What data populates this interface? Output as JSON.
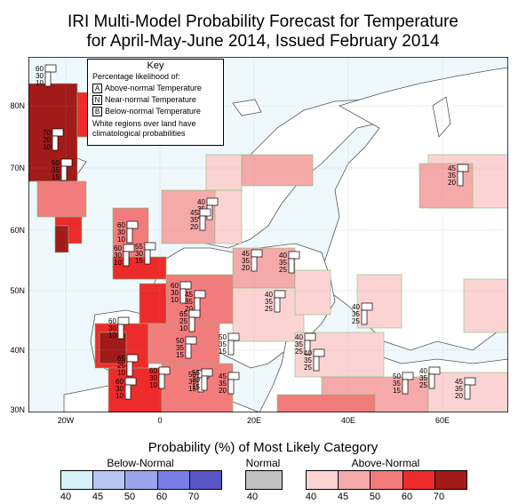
{
  "title_line1": "IRI Multi-Model Probability Forecast for Temperature",
  "title_line2": "for April-May-June 2014, Issued February 2014",
  "key": {
    "title": "Key",
    "subtitle": "Percentage likelihood of:",
    "items": [
      {
        "letter": "A",
        "label": "Above-normal Temperature"
      },
      {
        "letter": "N",
        "label": "Near-normal Temperature"
      },
      {
        "letter": "B",
        "label": "Below-normal Temperature"
      }
    ],
    "note_line1": "White regions over land have",
    "note_line2": "climatological probabilities"
  },
  "lat_labels": [
    "80N",
    "70N",
    "60N",
    "50N",
    "40N",
    "30N"
  ],
  "lon_labels": [
    "20W",
    "0",
    "20E",
    "40E",
    "60E"
  ],
  "legend": {
    "title": "Probability (%) of Most Likely Category",
    "below_label": "Below-Normal",
    "normal_label": "Normal",
    "above_label": "Above-Normal",
    "below_ticks": [
      "40",
      "45",
      "50",
      "60",
      "70"
    ],
    "normal_ticks": [
      "40"
    ],
    "above_ticks": [
      "40",
      "45",
      "50",
      "60",
      "70"
    ],
    "below_colors": [
      "#d6f2f8",
      "#b8c6f4",
      "#9aa5ee",
      "#7b7de6",
      "#5a56c6"
    ],
    "normal_colors": [
      "#c2c2c2"
    ],
    "above_colors": [
      "#fcd3d3",
      "#f5a9a9",
      "#f27c7c",
      "#ee2b2b",
      "#a31a1a"
    ]
  },
  "colors": {
    "ocean": "#eef8fd",
    "land_clim": "#ffffff",
    "coast": "#555555"
  },
  "forecast_boxes": [
    {
      "a": "60",
      "n": "30",
      "b": "10"
    },
    {
      "a": "70",
      "n": "20",
      "b": "10"
    },
    {
      "a": "70",
      "n": "20",
      "b": "10"
    },
    {
      "a": "50",
      "n": "35",
      "b": "15"
    },
    {
      "a": "45",
      "n": "35",
      "b": "20"
    },
    {
      "a": "40",
      "n": "35",
      "b": "25"
    },
    {
      "a": "45",
      "n": "35",
      "b": "20"
    },
    {
      "a": "60",
      "n": "30",
      "b": "10"
    },
    {
      "a": "60",
      "n": "30",
      "b": "10"
    },
    {
      "a": "55",
      "n": "30",
      "b": "15"
    },
    {
      "a": "45",
      "n": "35",
      "b": "20"
    },
    {
      "a": "40",
      "n": "35",
      "b": "25"
    },
    {
      "a": "60",
      "n": "30",
      "b": "10"
    },
    {
      "a": "45",
      "n": "35",
      "b": "20"
    },
    {
      "a": "65",
      "n": "25",
      "b": "10"
    },
    {
      "a": "40",
      "n": "35",
      "b": "25"
    },
    {
      "a": "40",
      "n": "35",
      "b": "25"
    },
    {
      "a": "60",
      "n": "30",
      "b": "10"
    },
    {
      "a": "50",
      "n": "35",
      "b": "15"
    },
    {
      "a": "50",
      "n": "35",
      "b": "15"
    },
    {
      "a": "40",
      "n": "35",
      "b": "25"
    },
    {
      "a": "65",
      "n": "25",
      "b": "10"
    },
    {
      "a": "60",
      "n": "30",
      "b": "10"
    },
    {
      "a": "50",
      "n": "35",
      "b": "15"
    },
    {
      "a": "40",
      "n": "35",
      "b": "25"
    },
    {
      "a": "60",
      "n": "30",
      "b": "10"
    },
    {
      "a": "55",
      "n": "30",
      "b": "15"
    },
    {
      "a": "45",
      "n": "35",
      "b": "20"
    },
    {
      "a": "50",
      "n": "35",
      "b": "15"
    },
    {
      "a": "40",
      "n": "35",
      "b": "25"
    },
    {
      "a": "45",
      "n": "35",
      "b": "20"
    }
  ]
}
